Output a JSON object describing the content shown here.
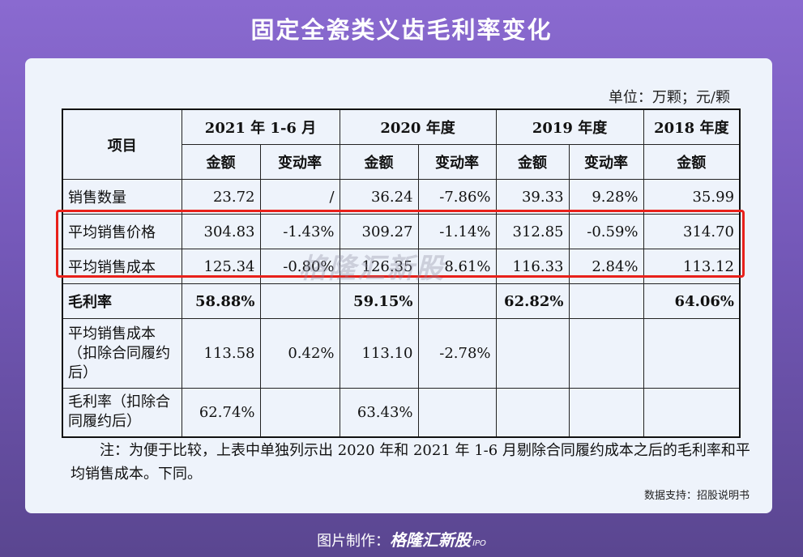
{
  "title": "固定全瓷类义齿毛利率变化",
  "unit": "单位：万颗；元/颗",
  "table": {
    "header_item": "项目",
    "periods": [
      "2021 年 1-6 月",
      "2020 年度",
      "2019 年度",
      "2018 年度"
    ],
    "sub_amount": "金额",
    "sub_change": "变动率",
    "rows": [
      {
        "label": "销售数量",
        "cells": [
          "23.72",
          "/",
          "36.24",
          "-7.86%",
          "39.33",
          "9.28%",
          "35.99"
        ]
      },
      {
        "label": "平均销售价格",
        "cells": [
          "304.83",
          "-1.43%",
          "309.27",
          "-1.14%",
          "312.85",
          "-0.59%",
          "314.70"
        ]
      },
      {
        "label": "平均销售成本",
        "cells": [
          "125.34",
          "-0.80%",
          "126.35",
          "8.61%",
          "116.33",
          "2.84%",
          "113.12"
        ]
      },
      {
        "label": "毛利率",
        "cells": [
          "58.88%",
          "",
          "59.15%",
          "",
          "62.82%",
          "",
          "64.06%"
        ]
      },
      {
        "label": "平均销售成本（扣除合同履约后）",
        "cells": [
          "113.58",
          "0.42%",
          "113.10",
          "-2.78%",
          "",
          "",
          ""
        ]
      },
      {
        "label": "毛利率（扣除合同履约后）",
        "cells": [
          "62.74%",
          "",
          "63.43%",
          "",
          "",
          "",
          ""
        ]
      }
    ]
  },
  "note": "注：为便于比较，上表中单独列示出 2020 年和 2021 年 1-6 月剔除合同履约成本之后的毛利率和平均销售成本。下同。",
  "watermark": "格隆汇新股",
  "source": "数据支持：招股说明书",
  "credit_prefix": "图片制作：",
  "credit_brand": "格隆汇新股",
  "credit_ipo": "IPO"
}
